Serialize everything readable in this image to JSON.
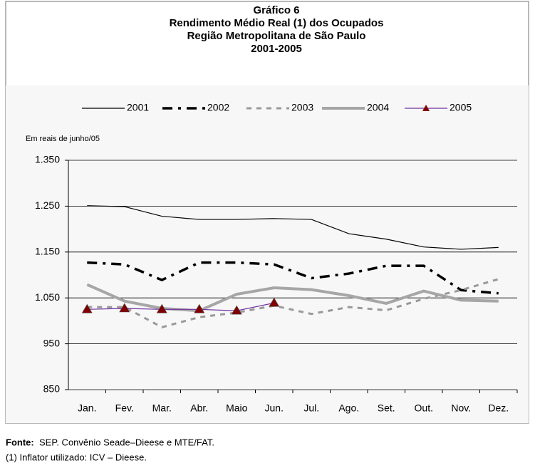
{
  "chart_data": {
    "type": "line",
    "title": [
      "Gráfico 6",
      "Rendimento Médio Real (1) dos Ocupados",
      "Região Metropolitana de São Paulo",
      "2001-2005"
    ],
    "y_label": "Em reais de junho/05",
    "categories": [
      "Jan.",
      "Fev.",
      "Mar.",
      "Abr.",
      "Maio",
      "Jun.",
      "Jul.",
      "Ago.",
      "Set.",
      "Out.",
      "Nov.",
      "Dez."
    ],
    "series": [
      {
        "name": "2001",
        "color": "#000000",
        "width": 1.2,
        "dash": "none",
        "values": [
          1251,
          1249,
          1228,
          1221,
          1221,
          1223,
          1221,
          1190,
          1178,
          1161,
          1156,
          1160
        ]
      },
      {
        "name": "2002",
        "color": "#000000",
        "width": 3.5,
        "dash": "14 8 4 8",
        "values": [
          1127,
          1123,
          1089,
          1127,
          1127,
          1123,
          1093,
          1103,
          1120,
          1120,
          1067,
          1060
        ]
      },
      {
        "name": "2003",
        "color": "#999999",
        "width": 3,
        "dash": "7 7",
        "values": [
          1030,
          1030,
          986,
          1008,
          1018,
          1033,
          1015,
          1030,
          1023,
          1048,
          1067,
          1091
        ]
      },
      {
        "name": "2004",
        "color": "#a6a6a6",
        "width": 4,
        "dash": "none",
        "values": [
          1079,
          1043,
          1027,
          1022,
          1058,
          1072,
          1068,
          1055,
          1038,
          1065,
          1045,
          1043
        ]
      },
      {
        "name": "2005",
        "color": "#7030a0",
        "width": 1.2,
        "dash": "none",
        "marker": "triangle",
        "marker_color": "#800000",
        "values": [
          1025,
          1027,
          1025,
          1025,
          1022,
          1039,
          null,
          null,
          null,
          null,
          null,
          null
        ]
      }
    ],
    "ylim": [
      850,
      1350
    ],
    "yticks": [
      {
        "value": 850,
        "label": "850"
      },
      {
        "value": 950,
        "label": "950"
      },
      {
        "value": 1050,
        "label": "1.050"
      },
      {
        "value": 1150,
        "label": "1.150"
      },
      {
        "value": 1250,
        "label": "1.250"
      },
      {
        "value": 1350,
        "label": "1.350"
      }
    ],
    "grid": true,
    "legend": "top",
    "source_label": "Fonte:",
    "source": "SEP. Convênio Seade–Dieese e MTE/FAT.",
    "footnote": "(1) Inflator utilizado: ICV – Dieese."
  }
}
